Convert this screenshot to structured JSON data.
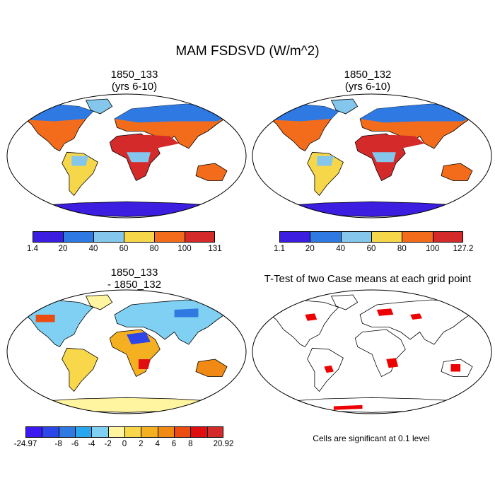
{
  "title": "MAM FSDSVD (W/m^2)",
  "panels": [
    {
      "id": "p1",
      "title_line1": "1850_133",
      "title_line2": "(yrs 6-10)"
    },
    {
      "id": "p2",
      "title_line1": "1850_132",
      "title_line2": "(yrs 6-10)"
    },
    {
      "id": "p3",
      "title_line1": "1850_133",
      "title_line2": "- 1850_132"
    },
    {
      "id": "p4",
      "title_line1": "T-Test of two Case means at each grid point",
      "title_line2": ""
    }
  ],
  "colorbars": {
    "cb1": {
      "colors": [
        "#3b1ee0",
        "#2e79e2",
        "#84c6ec",
        "#f7d74a",
        "#f26c1c",
        "#d42a2a"
      ],
      "labels": [
        "1.4",
        "20",
        "40",
        "60",
        "80",
        "100",
        "131"
      ]
    },
    "cb2": {
      "colors": [
        "#3b1ee0",
        "#2e79e2",
        "#84c6ec",
        "#f7d74a",
        "#f26c1c",
        "#d42a2a"
      ],
      "labels": [
        "1.1",
        "20",
        "40",
        "60",
        "80",
        "100",
        "127.2"
      ]
    },
    "cb3": {
      "colors": [
        "#3a1af0",
        "#2e45e8",
        "#2e79e2",
        "#29a6f0",
        "#7fd0f2",
        "#fff5a0",
        "#f9d74a",
        "#f5b022",
        "#f08a14",
        "#ea4c12",
        "#e00e0e",
        "#d42a2a"
      ],
      "labels": [
        "-24.97",
        "-8",
        "-6",
        "-4",
        "-2",
        "0",
        "2",
        "4",
        "6",
        "8",
        "20.92"
      ]
    }
  },
  "significance_note": "Cells are significant at 0.1 level",
  "significance_color": "#ee0000"
}
